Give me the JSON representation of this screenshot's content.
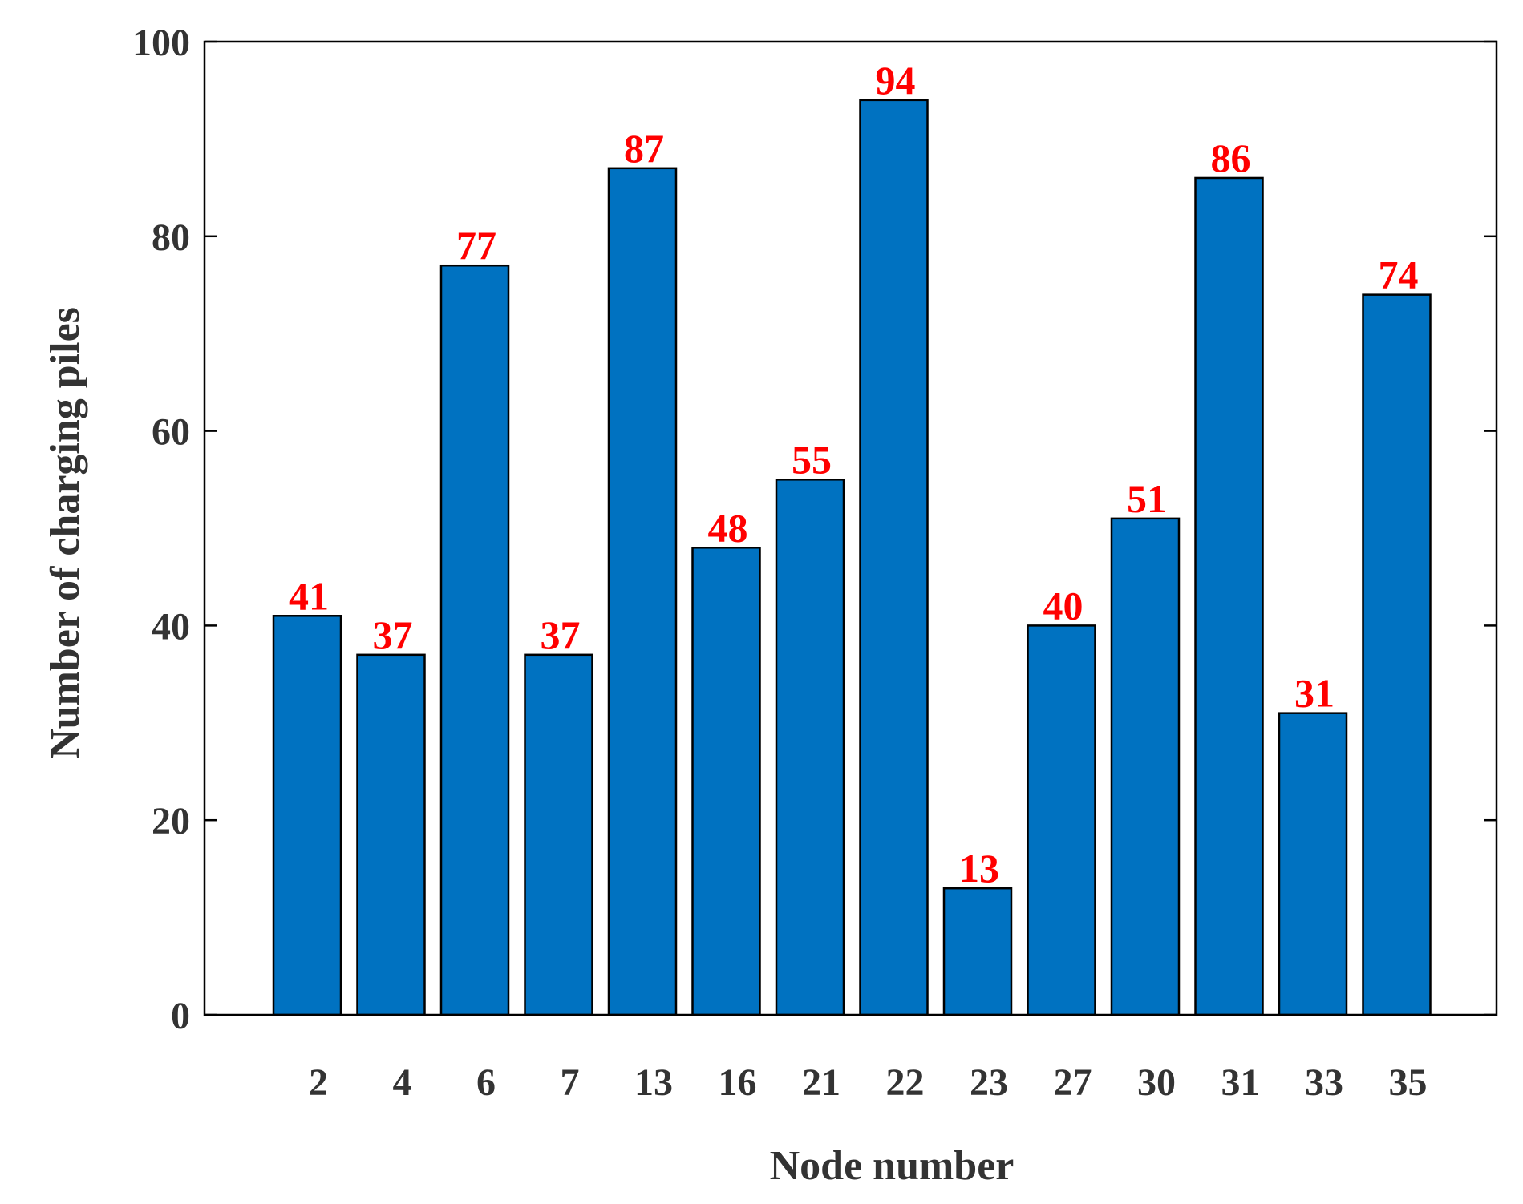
{
  "chart_data": {
    "type": "bar",
    "title": "",
    "xlabel": "Node number",
    "ylabel": "Number of charging piles",
    "categories": [
      "2",
      "4",
      "6",
      "7",
      "13",
      "16",
      "21",
      "22",
      "23",
      "27",
      "30",
      "31",
      "33",
      "35"
    ],
    "values": [
      41,
      37,
      77,
      37,
      87,
      48,
      55,
      94,
      13,
      40,
      51,
      86,
      31,
      74
    ],
    "ylim": [
      0,
      100
    ],
    "yticks": [
      0,
      20,
      40,
      60,
      80,
      100
    ],
    "grid": false,
    "legend": "none",
    "colors": {
      "bar_fill": "#0072C1",
      "bar_stroke": "#000000",
      "data_label": "#FF0000",
      "axis": "#000000",
      "text": "#333333"
    }
  }
}
